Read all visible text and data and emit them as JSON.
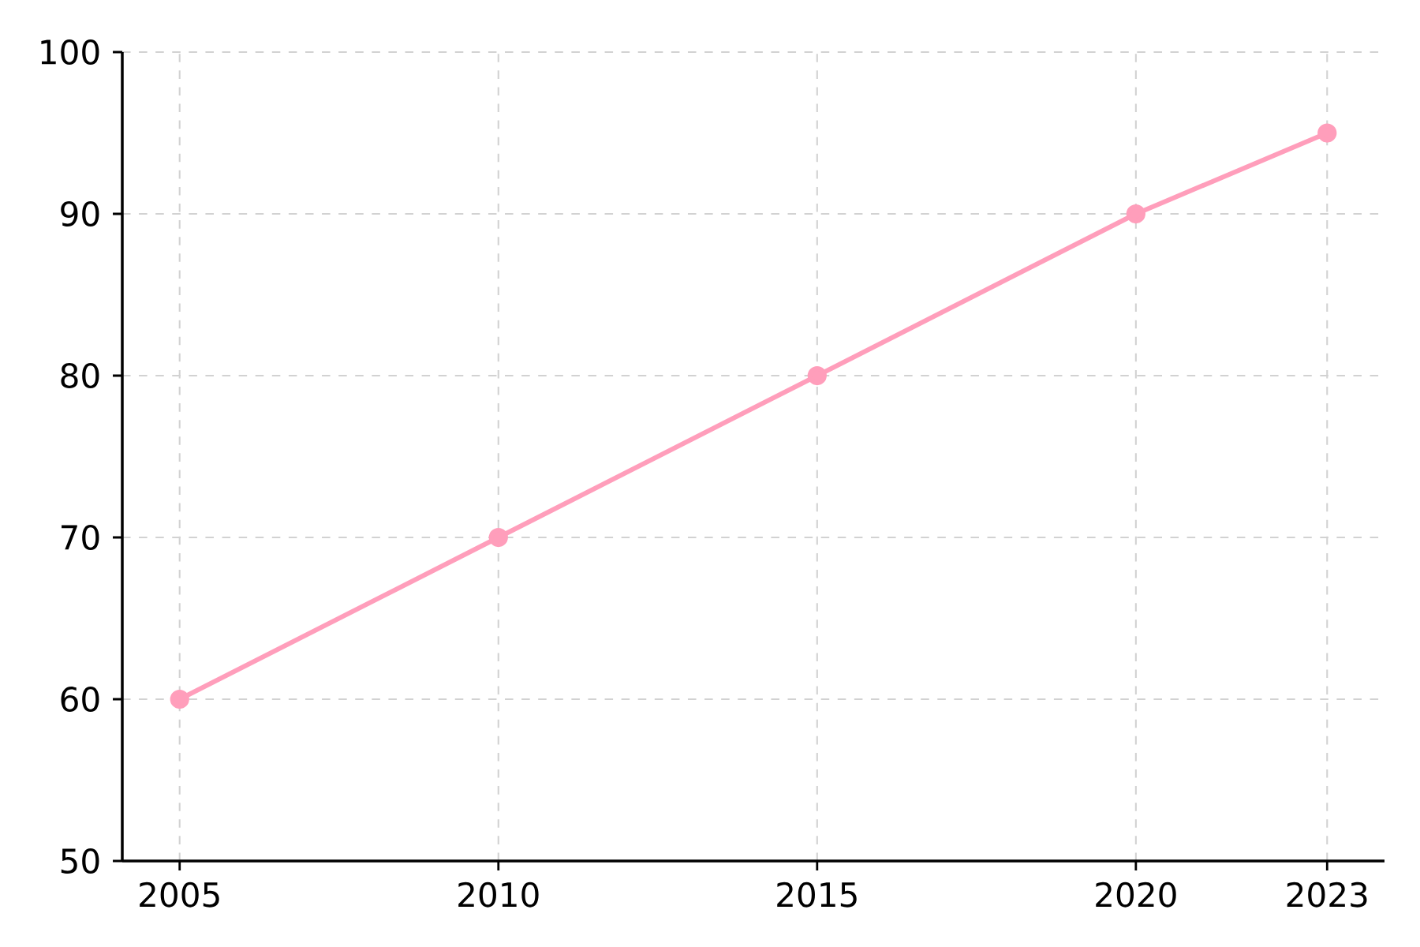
{
  "chart_data": {
    "type": "line",
    "x": [
      2005,
      2010,
      2015,
      2020,
      2023
    ],
    "series": [
      {
        "color": "#ff9ebb",
        "values": [
          60,
          70,
          80,
          90,
          95
        ]
      }
    ],
    "xlim": [
      2004.1,
      2023.9
    ],
    "xticks": [
      2005,
      2010,
      2015,
      2020,
      2023
    ],
    "ylim": [
      50,
      100
    ],
    "yticks": [
      50,
      60,
      70,
      80,
      90,
      100
    ],
    "grid": true,
    "marker": "circle",
    "line_style": "solid"
  }
}
